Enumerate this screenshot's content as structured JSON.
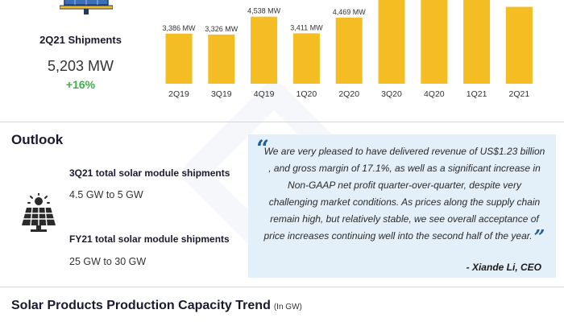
{
  "shipments": {
    "title": "2Q21 Shipments",
    "value": "5,203 MW",
    "growth": "+16%",
    "accent_color": "#3fae49",
    "icon": "solar-panel-icon"
  },
  "chart_data": {
    "type": "bar",
    "categories": [
      "2Q19",
      "3Q19",
      "4Q19",
      "1Q20",
      "2Q20",
      "3Q20",
      "4Q20",
      "1Q21",
      "2Q21"
    ],
    "values": [
      3386,
      3326,
      4538,
      3411,
      4469,
      null,
      null,
      null,
      5203
    ],
    "data_labels": [
      "3,386 MW",
      "3,326 MW",
      "4,538 MW",
      "3,411 MW",
      "4,469 MW",
      "",
      "",
      "",
      ""
    ],
    "title": "",
    "xlabel": "",
    "ylabel": "",
    "bar_color": "#f5bd24",
    "grid": false
  },
  "outlook": {
    "title": "Outlook",
    "icon": "solar-panel-sun-icon",
    "guidance": [
      {
        "label": "3Q21 total solar module shipments",
        "value": "4.5 GW to 5 GW"
      },
      {
        "label": "FY21 total solar module shipments",
        "value": "25 GW to 30 GW"
      }
    ]
  },
  "quote": {
    "open_mark": "“",
    "close_mark": "”",
    "text": "We are very pleased to have delivered revenue of US$1.23 billion , and gross margin of 17.1%, as well as a significant increase in Non-GAAP net profit quarter-over-quarter, despite very challenging market conditions. As prices along the supply chain remain high, but relatively stable, we see overall acceptance of price increases continuing well into the second half of the year.",
    "author": "- Xiande Li, CEO",
    "background_color": "#e3f0fa",
    "mark_color": "#1e5fa0"
  },
  "capacity": {
    "title": "Solar Products Production Capacity Trend",
    "unit": "(In GW)"
  }
}
